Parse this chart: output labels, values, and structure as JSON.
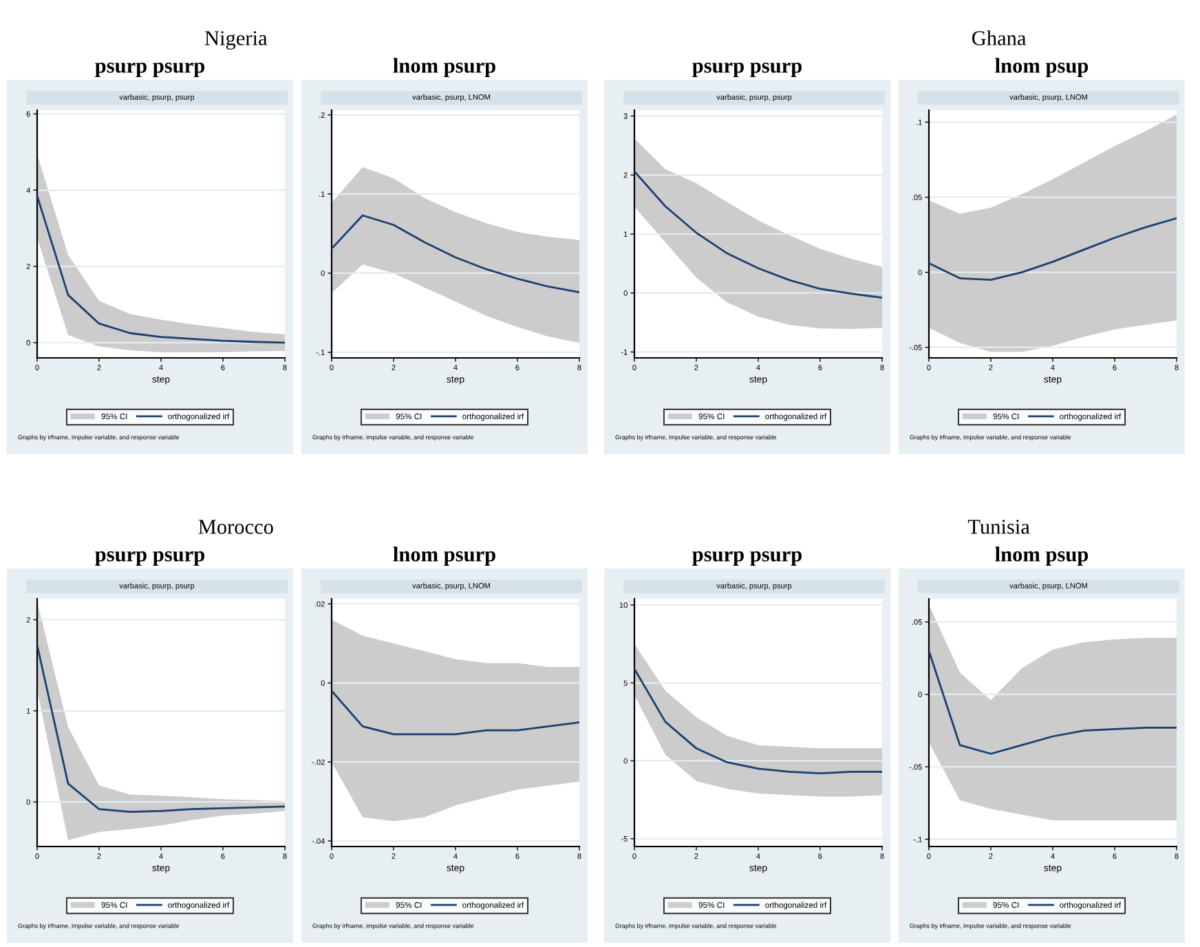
{
  "chart_data": [
    {
      "type": "line",
      "title": "psurp psurp",
      "subtitle": "varbasic, psurp, psurp",
      "xlabel": "step",
      "annotations": [
        "Nigeria",
        "95% CI",
        "Graphs by irfname, impulse variable, and response variable"
      ],
      "x": [
        0,
        1,
        2,
        3,
        4,
        5,
        6,
        7,
        8
      ],
      "xlim": [
        0,
        8
      ],
      "xticks": [
        0,
        2,
        4,
        6,
        8
      ],
      "ylim": [
        -0.4,
        6.1
      ],
      "yticks": [
        0,
        2,
        4,
        6
      ],
      "grid": "y",
      "legend": "bottom",
      "series": [
        {
          "name": "orthogonalized irf",
          "color": "#1a3f6f",
          "values": [
            3.85,
            1.25,
            0.5,
            0.25,
            0.15,
            0.1,
            0.05,
            0.02,
            0.0
          ],
          "lower": [
            2.75,
            0.2,
            -0.1,
            -0.2,
            -0.25,
            -0.25,
            -0.25,
            -0.23,
            -0.22
          ],
          "upper": [
            4.95,
            2.3,
            1.1,
            0.75,
            0.6,
            0.48,
            0.38,
            0.28,
            0.22
          ]
        }
      ]
    },
    {
      "type": "line",
      "title": "lnom psurp",
      "subtitle": "varbasic, psurp, LNOM",
      "xlabel": "step",
      "annotations": [
        "95% CI",
        "Graphs by irfname, impulse variable, and response variable"
      ],
      "x": [
        0,
        1,
        2,
        3,
        4,
        5,
        6,
        7,
        8
      ],
      "xlim": [
        0,
        8
      ],
      "xticks": [
        0,
        2,
        4,
        6,
        8
      ],
      "ylim": [
        -0.107,
        0.206
      ],
      "yticks": [
        {
          "value": -0.1,
          "label": "-.1"
        },
        0,
        {
          "value": 0.1,
          "label": ".1"
        },
        {
          "value": 0.2,
          "label": ".2"
        }
      ],
      "grid": "y",
      "legend": "bottom",
      "series": [
        {
          "name": "orthogonalized irf",
          "color": "#1a3f6f",
          "values": [
            0.031,
            0.073,
            0.061,
            0.039,
            0.02,
            0.005,
            -0.007,
            -0.017,
            -0.024
          ],
          "lower": [
            -0.025,
            0.011,
            0.0,
            -0.018,
            -0.036,
            -0.054,
            -0.068,
            -0.08,
            -0.088
          ],
          "upper": [
            0.089,
            0.134,
            0.12,
            0.095,
            0.077,
            0.063,
            0.052,
            0.046,
            0.042
          ]
        }
      ]
    },
    {
      "type": "line",
      "title": "psurp psurp",
      "subtitle": "varbasic, psurp, psurp",
      "xlabel": "step",
      "annotations": [
        "95% CI",
        "Graphs by irfname, impulse variable, and response variable"
      ],
      "x": [
        0,
        1,
        2,
        3,
        4,
        5,
        6,
        7,
        8
      ],
      "xlim": [
        0,
        8
      ],
      "xticks": [
        0,
        2,
        4,
        6,
        8
      ],
      "ylim": [
        -1.1,
        3.1
      ],
      "yticks": [
        -1,
        0,
        1,
        2,
        3
      ],
      "grid": "y",
      "legend": "bottom",
      "series": [
        {
          "name": "orthogonalized irf",
          "color": "#1a3f6f",
          "values": [
            2.06,
            1.47,
            1.02,
            0.67,
            0.42,
            0.22,
            0.07,
            -0.01,
            -0.08
          ],
          "lower": [
            1.46,
            0.86,
            0.26,
            -0.16,
            -0.4,
            -0.54,
            -0.6,
            -0.61,
            -0.59
          ],
          "upper": [
            2.62,
            2.1,
            1.86,
            1.54,
            1.23,
            0.98,
            0.75,
            0.58,
            0.44
          ]
        }
      ]
    },
    {
      "type": "line",
      "title": "lnom psup",
      "subtitle": "varbasic, psurp, LNOM",
      "xlabel": "step",
      "annotations": [
        "Ghana",
        "95% CI",
        "Graphs by irfname, impulse variable, and response variable"
      ],
      "x": [
        0,
        1,
        2,
        3,
        4,
        5,
        6,
        7,
        8
      ],
      "xlim": [
        0,
        8
      ],
      "xticks": [
        0,
        2,
        4,
        6,
        8
      ],
      "ylim": [
        -0.057,
        0.108
      ],
      "yticks": [
        {
          "value": -0.05,
          "label": "-.05"
        },
        0,
        {
          "value": 0.05,
          "label": ".05"
        },
        {
          "value": 0.1,
          "label": ".1"
        }
      ],
      "grid": "y",
      "legend": "bottom",
      "series": [
        {
          "name": "orthogonalized irf",
          "color": "#1a3f6f",
          "values": [
            0.006,
            -0.004,
            -0.005,
            0.0,
            0.007,
            0.015,
            0.023,
            0.03,
            0.036
          ],
          "lower": [
            -0.037,
            -0.047,
            -0.053,
            -0.053,
            -0.049,
            -0.043,
            -0.038,
            -0.035,
            -0.032
          ],
          "upper": [
            0.048,
            0.039,
            0.043,
            0.052,
            0.062,
            0.073,
            0.084,
            0.094,
            0.105
          ]
        }
      ]
    },
    {
      "type": "line",
      "title": "psurp psurp",
      "subtitle": "varbasic, psurp, psurp",
      "xlabel": "step",
      "annotations": [
        "Morocco",
        "95% CI",
        "Graphs by irfname, impulse variable, and response variable"
      ],
      "x": [
        0,
        1,
        2,
        3,
        4,
        5,
        6,
        7,
        8
      ],
      "xlim": [
        0,
        8
      ],
      "xticks": [
        0,
        2,
        4,
        6,
        8
      ],
      "ylim": [
        -0.49,
        2.23
      ],
      "yticks": [
        0,
        1,
        2
      ],
      "grid": "y",
      "legend": "bottom",
      "series": [
        {
          "name": "orthogonalized irf",
          "color": "#1a3f6f",
          "values": [
            1.72,
            0.2,
            -0.08,
            -0.11,
            -0.1,
            -0.08,
            -0.07,
            -0.06,
            -0.05
          ],
          "lower": [
            1.23,
            -0.42,
            -0.33,
            -0.3,
            -0.26,
            -0.2,
            -0.15,
            -0.13,
            -0.1
          ],
          "upper": [
            2.2,
            0.82,
            0.18,
            0.08,
            0.07,
            0.05,
            0.03,
            0.02,
            0.01
          ]
        }
      ]
    },
    {
      "type": "line",
      "title": "lnom psurp",
      "subtitle": "varbasic, psurp, LNOM",
      "xlabel": "step",
      "annotations": [
        "95% CI",
        "Graphs by irfname, impulse variable, and response variable"
      ],
      "x": [
        0,
        1,
        2,
        3,
        4,
        5,
        6,
        7,
        8
      ],
      "xlim": [
        0,
        8
      ],
      "xticks": [
        0,
        2,
        4,
        6,
        8
      ],
      "ylim": [
        -0.0414,
        0.0213
      ],
      "yticks": [
        {
          "value": -0.04,
          "label": "-.04"
        },
        {
          "value": -0.02,
          "label": "-.02"
        },
        0,
        {
          "value": 0.02,
          "label": ".02"
        }
      ],
      "grid": "y",
      "legend": "bottom",
      "series": [
        {
          "name": "orthogonalized irf",
          "color": "#1a3f6f",
          "values": [
            -0.002,
            -0.011,
            -0.013,
            -0.013,
            -0.013,
            -0.012,
            -0.012,
            -0.011,
            -0.01
          ],
          "lower": [
            -0.02,
            -0.034,
            -0.035,
            -0.034,
            -0.031,
            -0.029,
            -0.027,
            -0.026,
            -0.025
          ],
          "upper": [
            0.016,
            0.012,
            0.01,
            0.008,
            0.006,
            0.005,
            0.005,
            0.004,
            0.004
          ]
        }
      ]
    },
    {
      "type": "line",
      "title": "psurp psurp",
      "subtitle": "varbasic, psurp, psurp",
      "xlabel": "step",
      "annotations": [
        "95% CI",
        "Graphs by irfname, impulse variable, and response variable"
      ],
      "x": [
        0,
        1,
        2,
        3,
        4,
        5,
        6,
        7,
        8
      ],
      "xlim": [
        0,
        8
      ],
      "xticks": [
        0,
        2,
        4,
        6,
        8
      ],
      "ylim": [
        -5.5,
        10.4
      ],
      "yticks": [
        -5,
        0,
        5,
        10
      ],
      "grid": "y",
      "legend": "bottom",
      "series": [
        {
          "name": "orthogonalized irf",
          "color": "#1a3f6f",
          "values": [
            5.9,
            2.5,
            0.8,
            -0.1,
            -0.5,
            -0.7,
            -0.8,
            -0.7,
            -0.7
          ],
          "lower": [
            4.2,
            0.4,
            -1.3,
            -1.8,
            -2.1,
            -2.2,
            -2.3,
            -2.3,
            -2.2
          ],
          "upper": [
            7.5,
            4.5,
            2.8,
            1.6,
            1.0,
            0.9,
            0.8,
            0.8,
            0.8
          ]
        }
      ]
    },
    {
      "type": "line",
      "title": "lnom psup",
      "subtitle": "varbasic, psurp, LNOM",
      "xlabel": "step",
      "annotations": [
        "Tunisia",
        "95% CI",
        "Graphs by irfname, impulse variable, and response variable"
      ],
      "x": [
        0,
        1,
        2,
        3,
        4,
        5,
        6,
        7,
        8
      ],
      "xlim": [
        0,
        8
      ],
      "xticks": [
        0,
        2,
        4,
        6,
        8
      ],
      "ylim": [
        -0.105,
        0.066
      ],
      "yticks": [
        {
          "value": -0.1,
          "label": "-.1"
        },
        {
          "value": -0.05,
          "label": "-.05"
        },
        0,
        {
          "value": 0.05,
          "label": ".05"
        }
      ],
      "grid": "y",
      "legend": "bottom",
      "series": [
        {
          "name": "orthogonalized irf",
          "color": "#1a3f6f",
          "values": [
            0.03,
            -0.035,
            -0.041,
            -0.035,
            -0.029,
            -0.025,
            -0.024,
            -0.023,
            -0.023
          ],
          "lower": [
            -0.033,
            -0.073,
            -0.079,
            -0.083,
            -0.087,
            -0.087,
            -0.087,
            -0.087,
            -0.087
          ],
          "upper": [
            0.062,
            0.015,
            -0.004,
            0.018,
            0.031,
            0.036,
            0.038,
            0.039,
            0.039
          ]
        }
      ]
    }
  ]
}
